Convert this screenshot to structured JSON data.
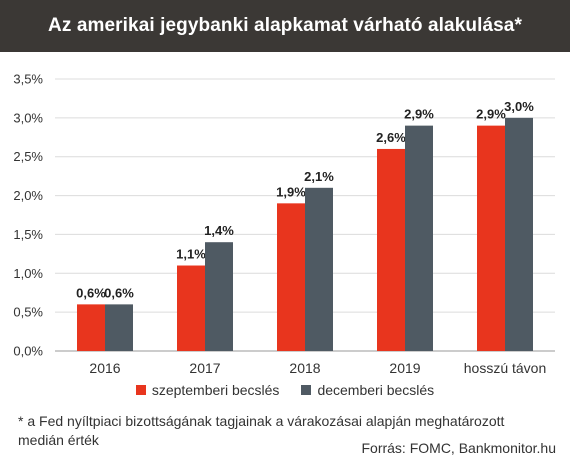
{
  "title": "Az amerikai jegybanki alapkamat várható alakulása*",
  "legend": {
    "series_1": "szeptemberi becslés",
    "series_2": "decemberi becslés"
  },
  "footnote": "* a Fed nyíltpiaci bizottságának tagjainak a várakozásai alapján meghatározott medián érték",
  "source": "Forrás: FOMC, Bankmonitor.hu",
  "colors": {
    "series_1": "#e8351e",
    "series_2": "#4f5a63",
    "title_bg": "#3b3835"
  },
  "chart_data": {
    "type": "bar",
    "categories": [
      "2016",
      "2017",
      "2018",
      "2019",
      "hosszú távon"
    ],
    "series": [
      {
        "name": "szeptemberi becslés",
        "values": [
          0.6,
          1.1,
          1.9,
          2.6,
          2.9
        ],
        "labels": [
          "0,6%",
          "1,1%",
          "1,9%",
          "2,6%",
          "2,9%"
        ]
      },
      {
        "name": "decemberi becslés",
        "values": [
          0.6,
          1.4,
          2.1,
          2.9,
          3.0
        ],
        "labels": [
          "0,6%",
          "1,4%",
          "2,1%",
          "2,9%",
          "3,0%"
        ]
      }
    ],
    "ylim": [
      0,
      3.5
    ],
    "yticks": [
      0,
      0.5,
      1.0,
      1.5,
      2.0,
      2.5,
      3.0,
      3.5
    ],
    "ytick_labels": [
      "0,0%",
      "0,5%",
      "1,0%",
      "1,5%",
      "2,0%",
      "2,5%",
      "3,0%",
      "3,5%"
    ],
    "grid": true,
    "legend_position": "bottom"
  }
}
